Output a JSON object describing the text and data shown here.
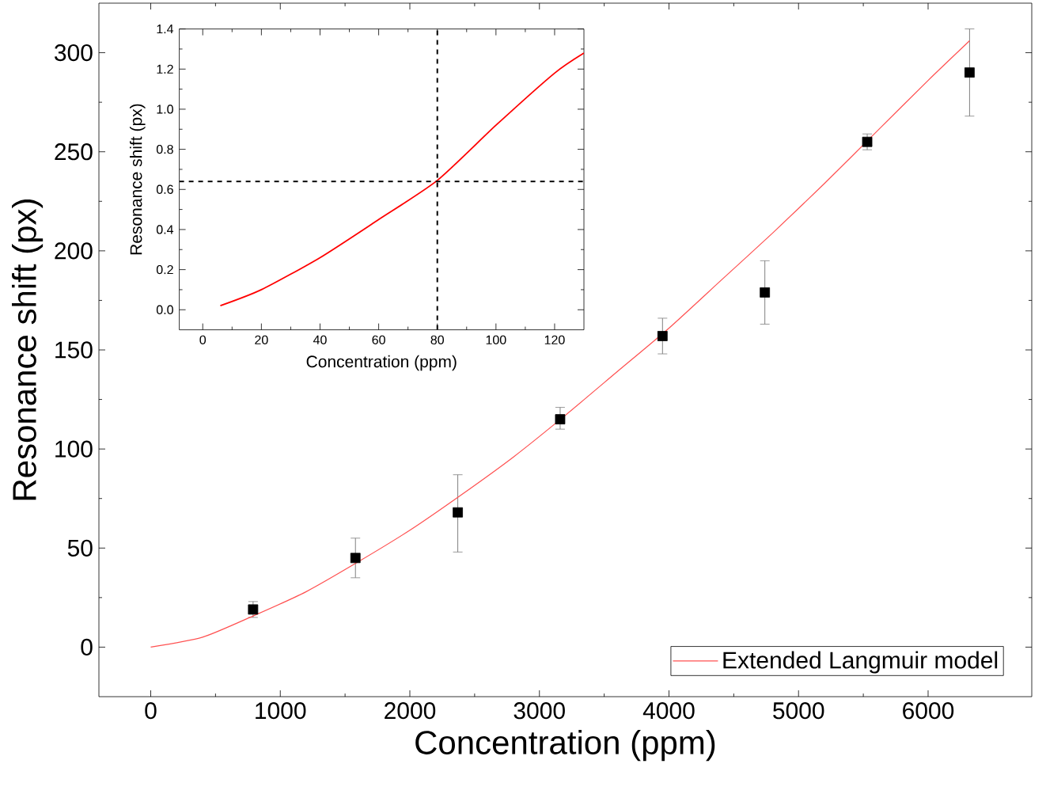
{
  "chart_data": [
    {
      "type": "scatter",
      "xlabel": "Concentration (ppm)",
      "ylabel": "Resonance shift (px)",
      "xlim": [
        -400,
        6800
      ],
      "ylim": [
        -25,
        325
      ],
      "xticks": [
        0,
        1000,
        2000,
        3000,
        4000,
        5000,
        6000
      ],
      "yticks": [
        0,
        50,
        100,
        150,
        200,
        250,
        300
      ],
      "grid": false,
      "legend": "bottom right",
      "series": [
        {
          "marker": "square",
          "color": "#000000",
          "x": [
            790,
            1580,
            2370,
            3160,
            3950,
            4740,
            5530,
            6320
          ],
          "values": [
            19,
            45,
            68,
            115,
            157,
            179,
            255,
            290
          ],
          "errors": [
            [
              15,
              23
            ],
            [
              35,
              55
            ],
            [
              48,
              87
            ],
            [
              110,
              121
            ],
            [
              148,
              166
            ],
            [
              163,
              195
            ],
            [
              251,
              259
            ],
            [
              268,
              312
            ]
          ]
        },
        {
          "type": "line",
          "name": "Extended Langmuir model",
          "color": "#ff5050",
          "x": [
            0,
            400,
            800,
            1200,
            1600,
            2000,
            2400,
            2800,
            3200,
            3600,
            4000,
            4400,
            4800,
            5200,
            5600,
            6000,
            6320
          ],
          "values": [
            0,
            5,
            16,
            28,
            43,
            59,
            77,
            96,
            117,
            139,
            161,
            185,
            209,
            234,
            260,
            286,
            306
          ]
        }
      ]
    },
    {
      "type": "line",
      "xlabel": "Concentration (ppm)",
      "ylabel": "Resonance shift (px)",
      "xlim": [
        -8,
        130
      ],
      "ylim": [
        -0.1,
        1.4
      ],
      "xticks": [
        0,
        20,
        40,
        60,
        80,
        100,
        120
      ],
      "yticks": [
        {
          "value": 0,
          "label": "0.0"
        },
        0.2,
        0.4,
        0.6,
        0.8,
        {
          "value": 1,
          "label": "1.0"
        },
        1.2,
        1.4
      ],
      "grid": false,
      "series": [
        {
          "color": "#ff0000",
          "x": [
            6,
            20,
            40,
            60,
            80,
            100,
            120,
            130
          ],
          "values": [
            0.02,
            0.1,
            0.26,
            0.45,
            0.645,
            0.92,
            1.18,
            1.28
          ]
        }
      ],
      "ref_lines": [
        {
          "axis": "x",
          "value": 80,
          "line_style": "dashed",
          "color": "#000000"
        },
        {
          "axis": "y",
          "value": 0.64,
          "line_style": "dashed",
          "color": "#000000"
        }
      ]
    }
  ]
}
